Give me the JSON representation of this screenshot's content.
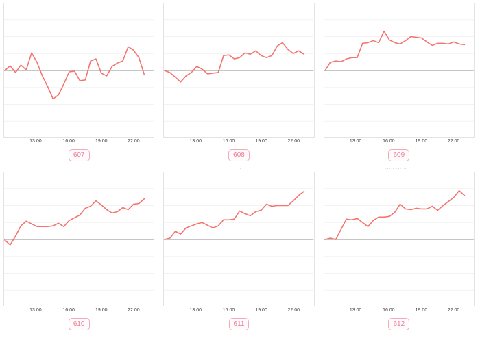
{
  "style": {
    "line_color": "#f4736e",
    "zero_line_color": "#b3b3b3",
    "grid_color": "#f2f2f2",
    "panel_border_color": "#e3e3e3",
    "badge_border_color": "#f4a8bd",
    "badge_text_color": "#ec7b95",
    "tick_text_color": "#3d3d3d",
    "caption_text_color": "#999999",
    "tick_positions_pct": [
      21.3,
      43.2,
      64.8,
      86.2
    ]
  },
  "chart_data": [
    {
      "type": "line",
      "id": "607",
      "caption": "··",
      "x_ticks": [
        "13:00",
        "16:00",
        "19:00",
        "22:00"
      ],
      "x_range": [
        "10:00",
        "23:00"
      ],
      "baseline": 0,
      "ylim": [
        -99,
        98
      ],
      "grid": "horizontal-only",
      "legend": "none",
      "values": [
        0,
        7,
        -3,
        8,
        1,
        26,
        12,
        -8,
        -24,
        -42,
        -36,
        -20,
        -2,
        -1,
        -15,
        -14,
        14,
        17,
        -4,
        -8,
        6,
        11,
        14,
        35,
        30,
        19,
        -6
      ]
    },
    {
      "type": "line",
      "id": "608",
      "caption": "··",
      "x_ticks": [
        "13:00",
        "16:00",
        "19:00",
        "22:00"
      ],
      "x_range": [
        "10:00",
        "23:00"
      ],
      "baseline": 0,
      "ylim": [
        -99,
        98
      ],
      "grid": "horizontal-only",
      "legend": "none",
      "values": [
        0,
        -3,
        -10,
        -17,
        -8,
        -3,
        6,
        2,
        -5,
        -4,
        -3,
        22,
        23,
        17,
        19,
        26,
        24,
        29,
        22,
        19,
        22,
        36,
        41,
        31,
        25,
        29,
        24
      ]
    },
    {
      "type": "line",
      "id": "609",
      "caption": "··",
      "x_ticks": [
        "13:00",
        "16:00",
        "19:00",
        "22:00"
      ],
      "x_range": [
        "10:00",
        "23:00"
      ],
      "baseline": 0,
      "ylim": [
        -99,
        98
      ],
      "grid": "horizontal-only",
      "legend": "none",
      "values": [
        0,
        12,
        14,
        13,
        17,
        19,
        19,
        40,
        41,
        44,
        41,
        58,
        45,
        41,
        39,
        44,
        50,
        49,
        48,
        42,
        37,
        40,
        40,
        39,
        42,
        39,
        38
      ]
    },
    {
      "type": "line",
      "id": "610",
      "caption": "",
      "x_ticks": [
        "13:00",
        "16:00",
        "19:00",
        "22:00"
      ],
      "x_range": [
        "10:00",
        "23:00"
      ],
      "baseline": 0,
      "ylim": [
        -99,
        98
      ],
      "grid": "horizontal-only",
      "legend": "none",
      "values": [
        -1,
        -8,
        5,
        20,
        27,
        23,
        19,
        19,
        19,
        20,
        24,
        19,
        28,
        32,
        36,
        46,
        49,
        57,
        51,
        44,
        39,
        41,
        47,
        44,
        52,
        53,
        60
      ]
    },
    {
      "type": "line",
      "id": "611",
      "caption": "· ·",
      "x_ticks": [
        "13:00",
        "16:00",
        "19:00",
        "22:00"
      ],
      "x_range": [
        "10:00",
        "23:00"
      ],
      "baseline": 0,
      "ylim": [
        -99,
        98
      ],
      "grid": "horizontal-only",
      "legend": "none",
      "values": [
        0,
        2,
        12,
        8,
        17,
        20,
        23,
        25,
        21,
        17,
        20,
        29,
        29,
        30,
        42,
        38,
        35,
        41,
        43,
        52,
        49,
        50,
        50,
        50,
        57,
        65,
        71
      ]
    },
    {
      "type": "line",
      "id": "612",
      "caption": "····· ··· ·· ··",
      "x_ticks": [
        "13:00",
        "16:00",
        "19:00",
        "22:00"
      ],
      "x_range": [
        "10:00",
        "23:00"
      ],
      "baseline": 0,
      "ylim": [
        -99,
        98
      ],
      "grid": "horizontal-only",
      "legend": "none",
      "values": [
        0,
        2,
        0,
        15,
        30,
        29,
        31,
        25,
        19,
        28,
        33,
        33,
        34,
        40,
        52,
        45,
        44,
        46,
        45,
        45,
        49,
        43,
        50,
        56,
        62,
        72,
        65
      ]
    }
  ]
}
